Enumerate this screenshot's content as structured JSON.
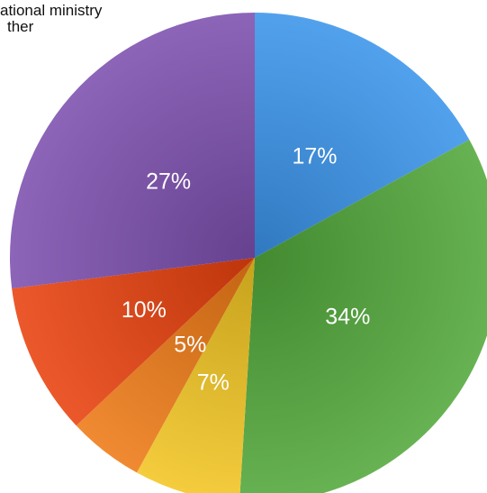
{
  "chart_data": {
    "type": "pie",
    "categories": [
      "",
      "",
      "",
      "",
      "",
      ""
    ],
    "values": [
      17,
      34,
      7,
      5,
      10,
      27
    ],
    "labels": [
      "17%",
      "34%",
      "7%",
      "5%",
      "10%",
      "27%"
    ],
    "colors": [
      "#3a94ea",
      "#52a83a",
      "#f2c522",
      "#ee7a16",
      "#e8410e",
      "#7c4fae"
    ],
    "legend_entries": [
      "ational ministry",
      "ther"
    ],
    "start_angle_deg": 0,
    "direction": "clockwise"
  }
}
